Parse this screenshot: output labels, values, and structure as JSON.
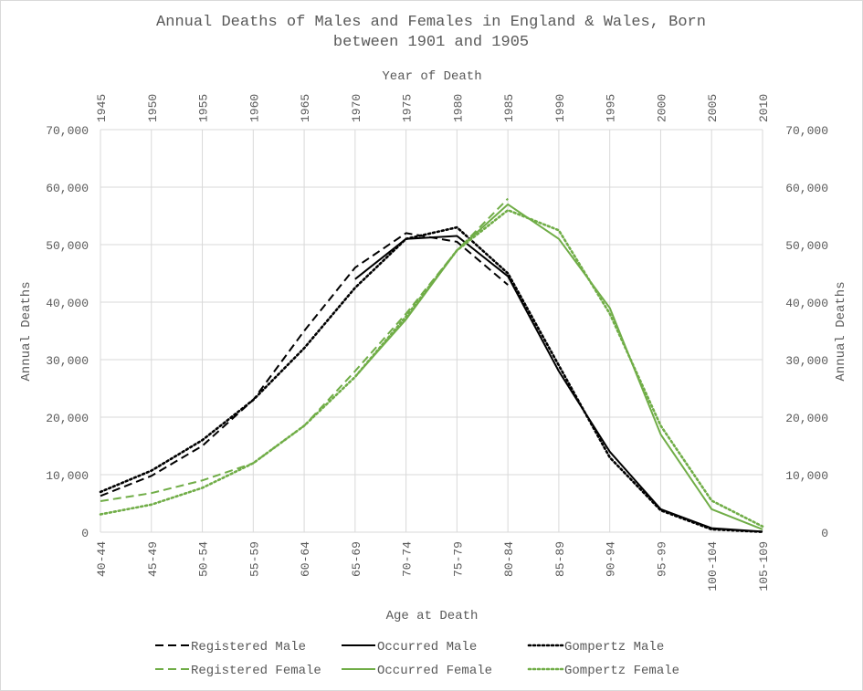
{
  "chart_data": {
    "type": "line",
    "title": [
      "Annual Deaths of Males and Females in England & Wales, Born",
      "between 1901 and 1905"
    ],
    "xlabel": "Age at Death",
    "x2label": "Year of Death",
    "ylabel": "Annual Deaths",
    "y2label": "Annual Deaths",
    "ylim": [
      0,
      70000
    ],
    "y_ticks": [
      "0",
      "10,000",
      "20,000",
      "30,000",
      "40,000",
      "50,000",
      "60,000",
      "70,000"
    ],
    "categories": [
      "40-44",
      "45-49",
      "50-54",
      "55-59",
      "60-64",
      "65-69",
      "70-74",
      "75-79",
      "80-84",
      "85-89",
      "90-94",
      "95-99",
      "100-104",
      "105-109"
    ],
    "x2_ticks": [
      "1945",
      "1950",
      "1955",
      "1960",
      "1965",
      "1970",
      "1975",
      "1980",
      "1985",
      "1990",
      "1995",
      "2000",
      "2005",
      "2010"
    ],
    "grid": true,
    "legend_position": "bottom",
    "colors": {
      "male": "#000000",
      "female": "#70ad47",
      "grid": "#d9d9d9",
      "text": "#595959"
    },
    "series": [
      {
        "name": "Registered Male",
        "color": "male",
        "dash": "dashed",
        "values": [
          6300,
          9800,
          15000,
          23000,
          35000,
          46000,
          52000,
          50500,
          43000,
          null,
          null,
          null,
          null,
          null
        ]
      },
      {
        "name": "Occurred Male",
        "color": "male",
        "dash": "solid",
        "values": [
          null,
          null,
          null,
          null,
          null,
          44000,
          51000,
          51500,
          44500,
          28000,
          14000,
          4000,
          700,
          100
        ]
      },
      {
        "name": "Gompertz Male",
        "color": "male",
        "dash": "dotted",
        "values": [
          7000,
          10700,
          16000,
          23000,
          32000,
          42500,
          51000,
          53000,
          45000,
          29000,
          13000,
          3800,
          500,
          50
        ]
      },
      {
        "name": "Registered Female",
        "color": "female",
        "dash": "dashed",
        "values": [
          5400,
          6800,
          9000,
          12000,
          18500,
          28000,
          38000,
          49000,
          58000,
          null,
          null,
          null,
          null,
          null
        ]
      },
      {
        "name": "Occurred Female",
        "color": "female",
        "dash": "solid",
        "values": [
          null,
          null,
          null,
          null,
          null,
          27000,
          37000,
          49000,
          57000,
          51000,
          39000,
          17000,
          4000,
          500
        ]
      },
      {
        "name": "Gompertz Female",
        "color": "female",
        "dash": "dotted",
        "values": [
          3100,
          4800,
          7700,
          12000,
          18500,
          27000,
          37500,
          49000,
          56000,
          52500,
          38000,
          18500,
          5500,
          1000
        ]
      }
    ]
  }
}
